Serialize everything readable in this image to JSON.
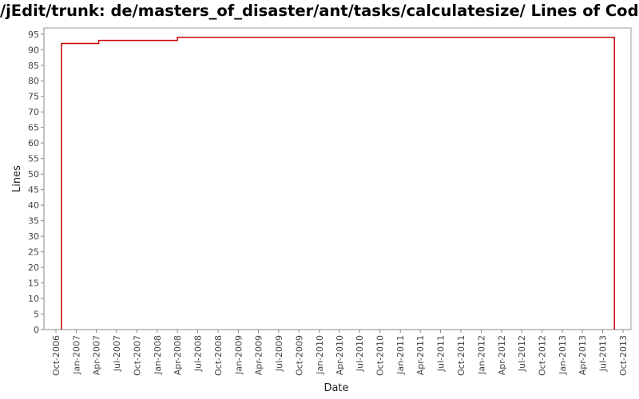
{
  "chart_data": {
    "type": "line",
    "title": "/jEdit/trunk: de/masters_of_disaster/ant/tasks/calculatesize/ Lines of Code",
    "xlabel": "Date",
    "ylabel": "Lines",
    "ylim": [
      0,
      97
    ],
    "xlim": [
      "2006-10-01",
      "2013-10-01"
    ],
    "y_ticks": [
      0,
      5,
      10,
      15,
      20,
      25,
      30,
      35,
      40,
      45,
      50,
      55,
      60,
      65,
      70,
      75,
      80,
      85,
      90,
      95
    ],
    "x_ticks": [
      {
        "date": "2006-10-01",
        "label": "Oct-2006"
      },
      {
        "date": "2007-01-01",
        "label": "Jan-2007"
      },
      {
        "date": "2007-04-01",
        "label": "Apr-2007"
      },
      {
        "date": "2007-07-01",
        "label": "Jul-2007"
      },
      {
        "date": "2007-10-01",
        "label": "Oct-2007"
      },
      {
        "date": "2008-01-01",
        "label": "Jan-2008"
      },
      {
        "date": "2008-04-01",
        "label": "Apr-2008"
      },
      {
        "date": "2008-07-01",
        "label": "Jul-2008"
      },
      {
        "date": "2008-10-01",
        "label": "Oct-2008"
      },
      {
        "date": "2009-01-01",
        "label": "Jan-2009"
      },
      {
        "date": "2009-04-01",
        "label": "Apr-2009"
      },
      {
        "date": "2009-07-01",
        "label": "Jul-2009"
      },
      {
        "date": "2009-10-01",
        "label": "Oct-2009"
      },
      {
        "date": "2010-01-01",
        "label": "Jan-2010"
      },
      {
        "date": "2010-04-01",
        "label": "Apr-2010"
      },
      {
        "date": "2010-07-01",
        "label": "Jul-2010"
      },
      {
        "date": "2010-10-01",
        "label": "Oct-2010"
      },
      {
        "date": "2011-01-01",
        "label": "Jan-2011"
      },
      {
        "date": "2011-04-01",
        "label": "Apr-2011"
      },
      {
        "date": "2011-07-01",
        "label": "Jul-2011"
      },
      {
        "date": "2011-10-01",
        "label": "Oct-2011"
      },
      {
        "date": "2012-01-01",
        "label": "Jan-2012"
      },
      {
        "date": "2012-04-01",
        "label": "Apr-2012"
      },
      {
        "date": "2012-07-01",
        "label": "Jul-2012"
      },
      {
        "date": "2012-10-01",
        "label": "Oct-2012"
      },
      {
        "date": "2013-01-01",
        "label": "Jan-2013"
      },
      {
        "date": "2013-04-01",
        "label": "Apr-2013"
      },
      {
        "date": "2013-07-01",
        "label": "Jul-2013"
      },
      {
        "date": "2013-10-01",
        "label": "Oct-2013"
      }
    ],
    "grid": false,
    "step": true,
    "series": [
      {
        "color": "#cc0000",
        "points": [
          {
            "x": "2006-10-26",
            "y": 0
          },
          {
            "x": "2006-10-26",
            "y": 92
          },
          {
            "x": "2007-04-12",
            "y": 93
          },
          {
            "x": "2008-04-01",
            "y": 94
          },
          {
            "x": "2013-08-23",
            "y": 94
          },
          {
            "x": "2013-08-23",
            "y": 0
          }
        ]
      }
    ]
  }
}
